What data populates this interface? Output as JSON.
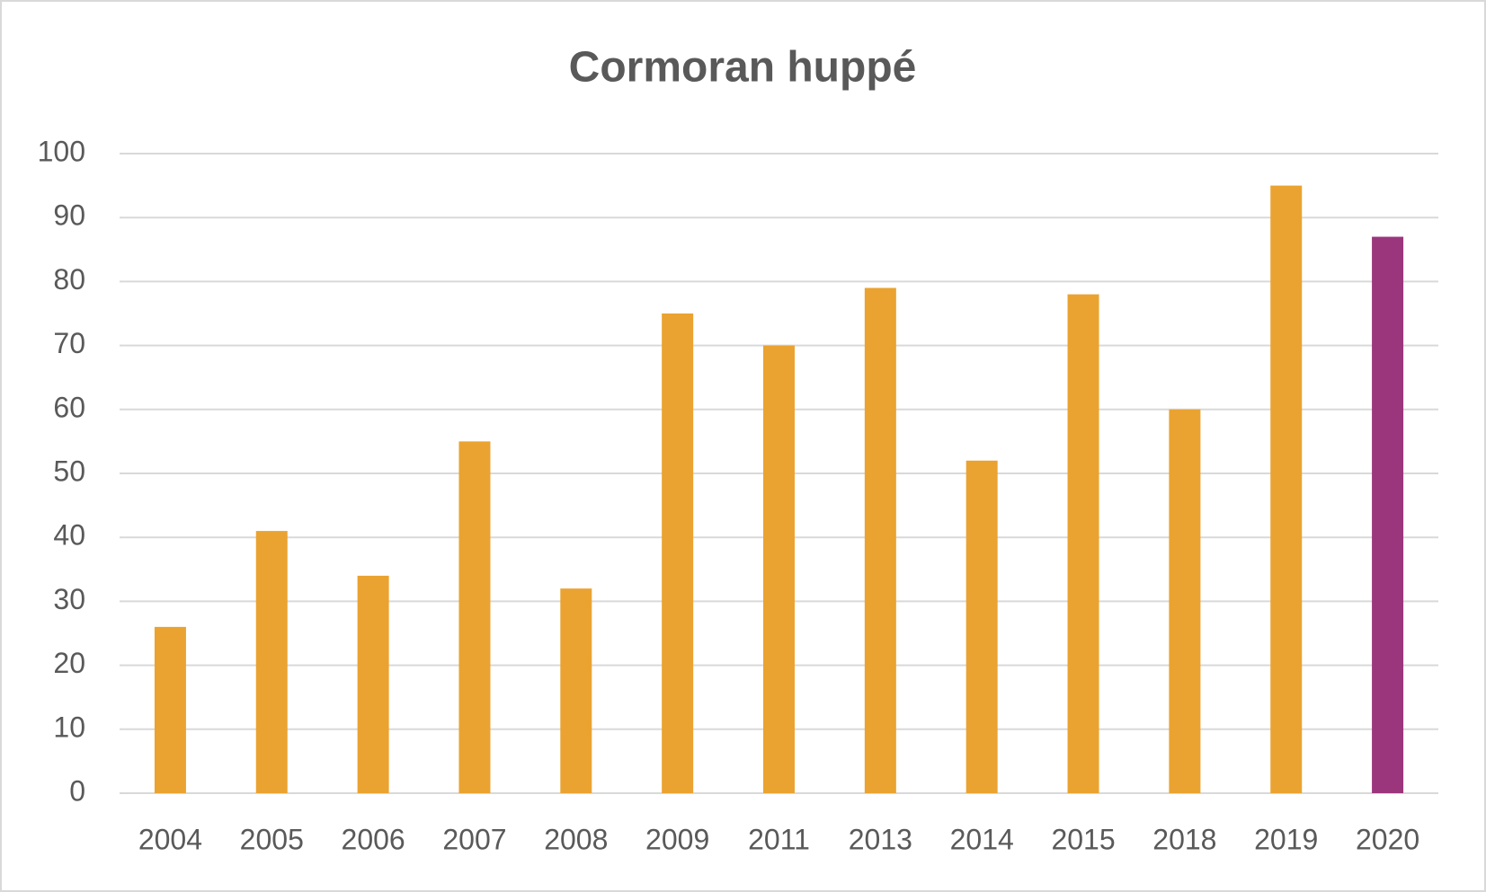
{
  "chart_data": {
    "type": "bar",
    "title": "Cormoran huppé",
    "categories": [
      "2004",
      "2005",
      "2006",
      "2007",
      "2008",
      "2009",
      "2011",
      "2013",
      "2014",
      "2015",
      "2018",
      "2019",
      "2020"
    ],
    "values": [
      26,
      41,
      34,
      55,
      32,
      75,
      70,
      79,
      52,
      78,
      60,
      95,
      87
    ],
    "colors": [
      "#eaa331",
      "#eaa331",
      "#eaa331",
      "#eaa331",
      "#eaa331",
      "#eaa331",
      "#eaa331",
      "#eaa331",
      "#eaa331",
      "#eaa331",
      "#eaa331",
      "#eaa331",
      "#9b367d"
    ],
    "ylim": [
      0,
      100
    ],
    "yticks": [
      0,
      10,
      20,
      30,
      40,
      50,
      60,
      70,
      80,
      90,
      100
    ],
    "grid": true
  }
}
